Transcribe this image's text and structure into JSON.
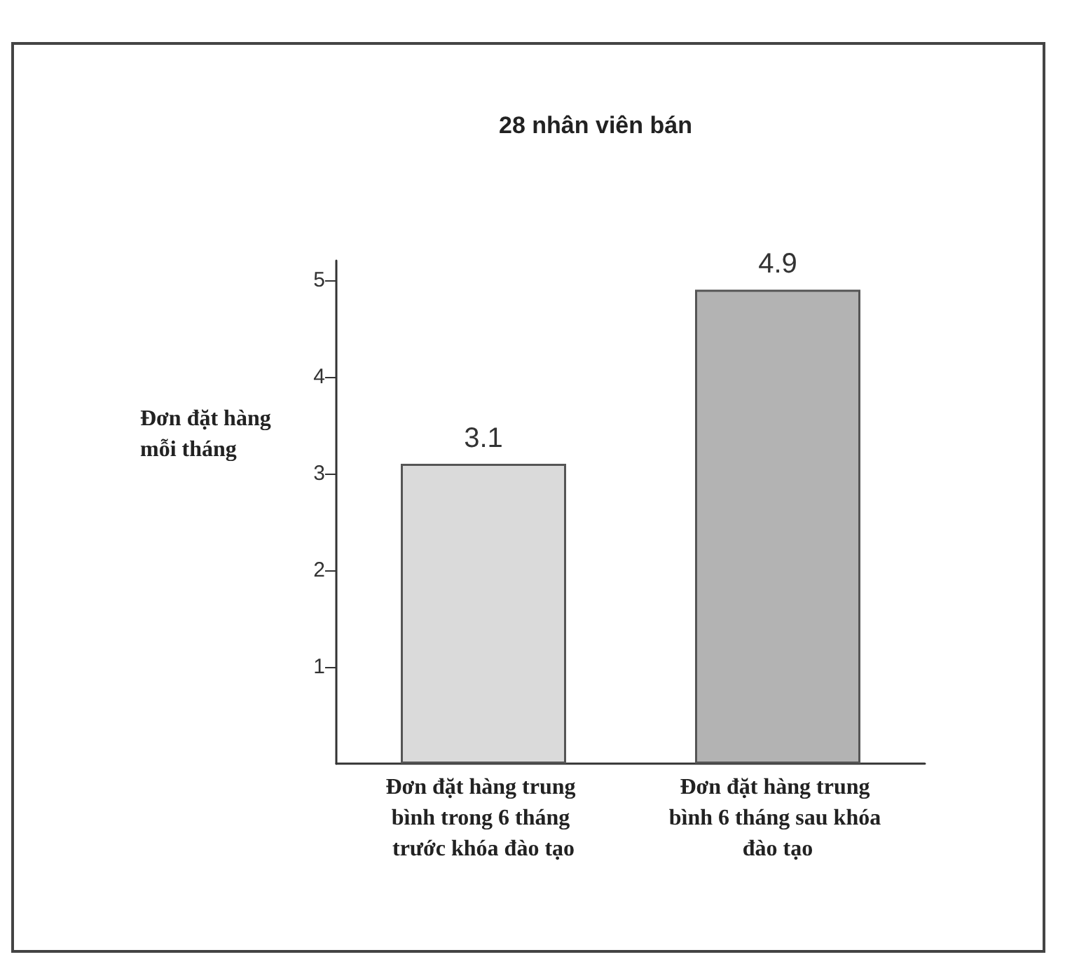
{
  "chart_data": {
    "type": "bar",
    "title": "28 nhân viên bán",
    "ylabel": "Đơn đặt hàng mỗi tháng",
    "categories": [
      "Đơn đặt hàng trung bình trong 6 tháng trước khóa đào tạo",
      "Đơn đặt hàng trung bình 6 tháng sau khóa đào tạo"
    ],
    "values": [
      3.1,
      4.9
    ],
    "colors": [
      "#dadada",
      "#b3b3b3"
    ],
    "ylim": [
      0,
      5.2
    ],
    "yticks": [
      1,
      2,
      3,
      4,
      5
    ],
    "data_labels": true,
    "grid": false
  }
}
